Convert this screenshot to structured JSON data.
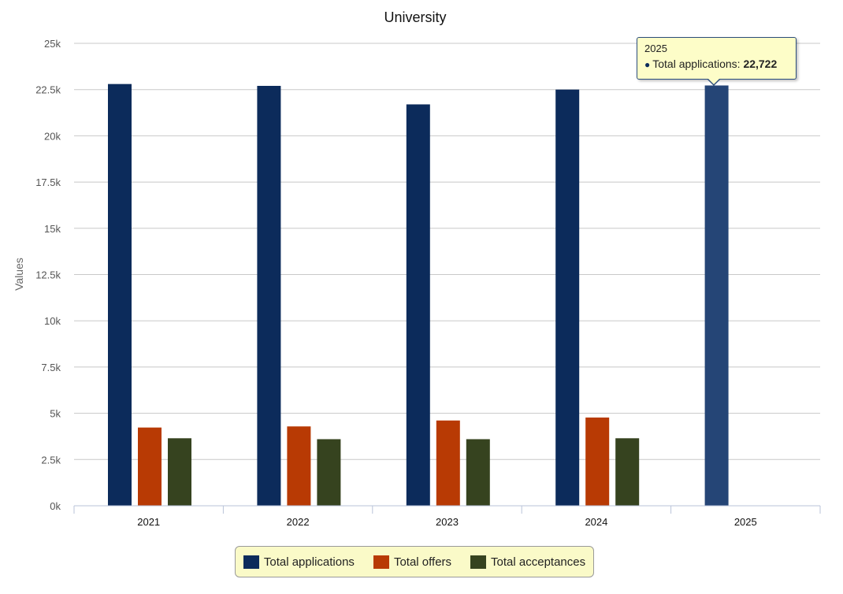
{
  "chart_data": {
    "type": "bar",
    "title": "University",
    "xlabel": "",
    "ylabel": "Values",
    "categories": [
      "2021",
      "2022",
      "2023",
      "2024",
      "2025"
    ],
    "ylim": [
      0,
      25000
    ],
    "yticks": [
      0,
      2500,
      5000,
      7500,
      10000,
      12500,
      15000,
      17500,
      20000,
      22500,
      25000
    ],
    "ytick_labels": [
      "0k",
      "2.5k",
      "5k",
      "7.5k",
      "10k",
      "12.5k",
      "15k",
      "17.5k",
      "20k",
      "22.5k",
      "25k"
    ],
    "grid": true,
    "legend_position": "bottom-center",
    "series": [
      {
        "name": "Total applications",
        "color": "#0c2b5b",
        "values": [
          22800,
          22700,
          21700,
          22500,
          22722
        ]
      },
      {
        "name": "Total offers",
        "color": "#b83a04",
        "values": [
          4230,
          4290,
          4610,
          4770,
          null
        ]
      },
      {
        "name": "Total acceptances",
        "color": "#36431f",
        "values": [
          3650,
          3600,
          3600,
          3650,
          null
        ]
      }
    ],
    "highlight_color": "#254576",
    "tooltip": {
      "category": "2025",
      "series": "Total applications",
      "label": "Total applications:",
      "value": "22,722"
    }
  }
}
